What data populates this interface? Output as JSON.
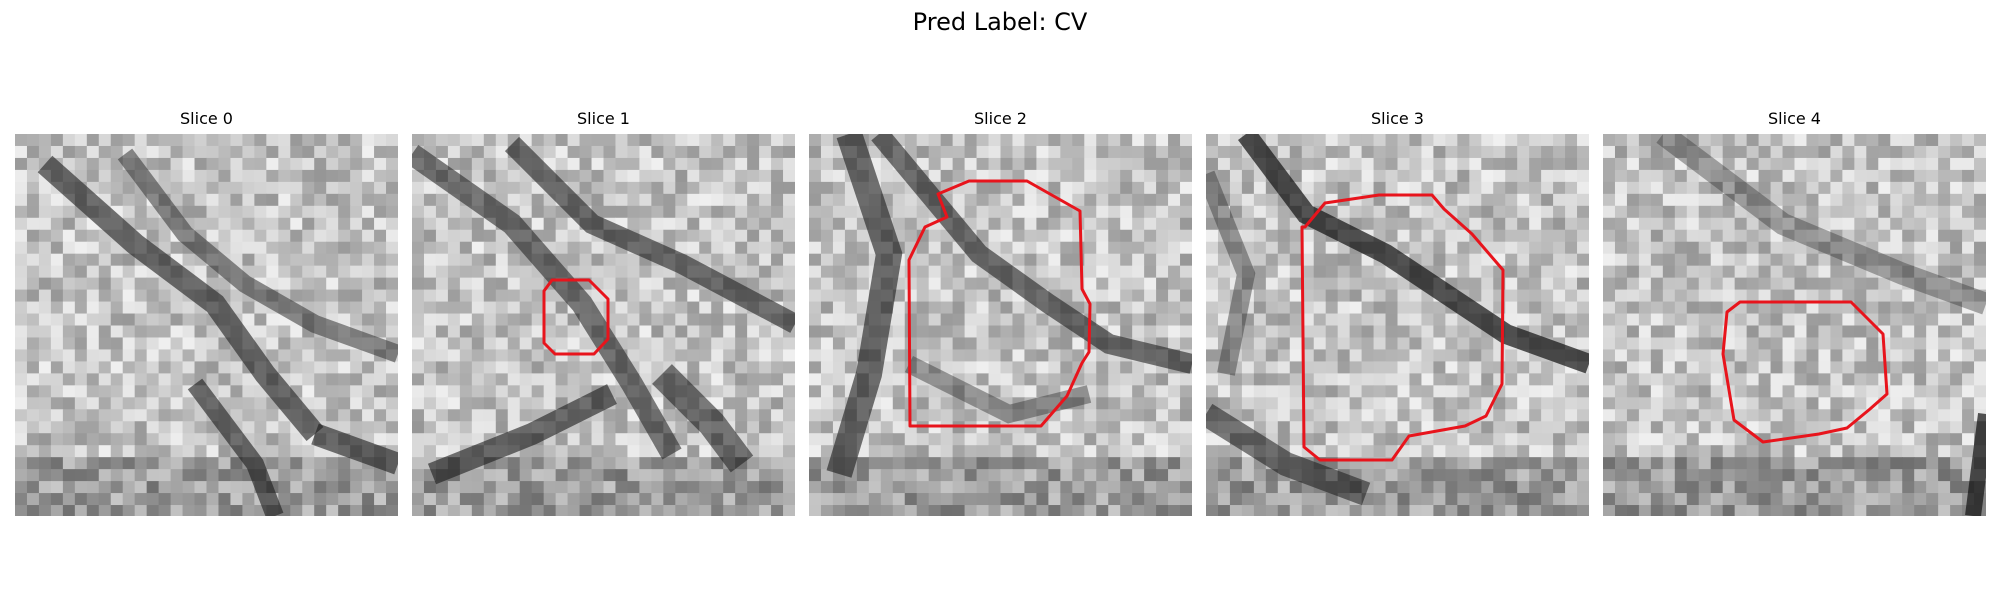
{
  "figure": {
    "title": "Pred Label: CV"
  },
  "panels": [
    {
      "title": "Slice 0"
    },
    {
      "title": "Slice 1"
    },
    {
      "title": "Slice 2"
    },
    {
      "title": "Slice 3"
    },
    {
      "title": "Slice 4"
    }
  ],
  "colors": {
    "contour": "#e8141c"
  }
}
